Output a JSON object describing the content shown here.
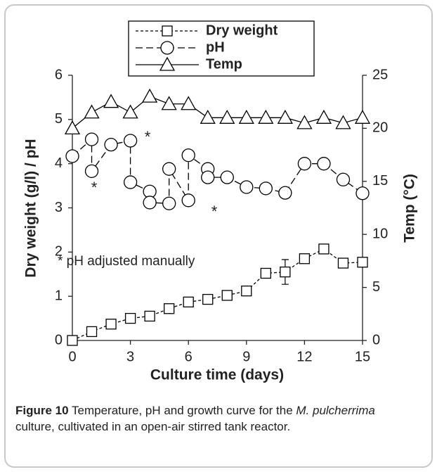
{
  "chart_data": {
    "type": "line",
    "x_label": "Culture time (days)",
    "y_label": "Dry weight (g/l) / pH",
    "y2_label": "Temp (°C)",
    "xlim": [
      0,
      15
    ],
    "xticks": [
      0,
      3,
      6,
      9,
      12,
      15
    ],
    "ylim": [
      0,
      6
    ],
    "yticks": [
      0,
      1,
      2,
      3,
      4,
      5,
      6
    ],
    "y2lim": [
      0,
      25
    ],
    "y2ticks": [
      0,
      5,
      10,
      15,
      20,
      25
    ],
    "grid": false,
    "legend": "top",
    "series": [
      {
        "name": "Dry weight",
        "color": "#000000",
        "marker": "square",
        "line_style": "dotted",
        "x": [
          0,
          1,
          2,
          3,
          4,
          5,
          6,
          7,
          8,
          9,
          10,
          11,
          12,
          13,
          14,
          15
        ],
        "values": [
          0,
          0.2,
          0.37,
          0.5,
          0.55,
          0.72,
          0.87,
          0.93,
          1.02,
          1.12,
          1.52,
          1.55,
          1.85,
          2.07,
          1.75,
          1.77
        ],
        "errors": [
          0.02,
          0.03,
          0.03,
          0.04,
          0.04,
          0.04,
          0.06,
          0.03,
          0.03,
          0.03,
          0.05,
          0.28,
          0.03,
          0.03,
          0.03,
          0.03
        ]
      },
      {
        "name": "pH",
        "color": "#000000",
        "marker": "circle",
        "line_style": "dashed",
        "x": [
          0,
          1,
          1,
          2,
          3,
          3,
          4,
          4,
          5,
          5,
          6,
          6,
          7,
          7,
          8,
          9,
          10,
          11,
          12,
          13,
          14,
          15
        ],
        "values": [
          4.17,
          4.55,
          3.83,
          4.43,
          4.52,
          3.58,
          3.37,
          3.12,
          3.1,
          3.88,
          3.17,
          4.19,
          3.88,
          3.69,
          3.69,
          3.47,
          3.44,
          3.34,
          4.0,
          4.0,
          3.64,
          3.33
        ]
      },
      {
        "name": "Temp",
        "color": "#000000",
        "marker": "triangle",
        "line_style": "solid",
        "axis": "y2",
        "x": [
          0,
          1,
          2,
          3,
          4,
          5,
          6,
          7,
          8,
          9,
          10,
          11,
          12,
          13,
          14,
          15
        ],
        "values": [
          20,
          21.5,
          22.5,
          21.5,
          23,
          22.3,
          22.3,
          21,
          21,
          21,
          21,
          21,
          20.5,
          21,
          20.5,
          21
        ]
      }
    ],
    "annotations": [
      "*",
      "*",
      "*"
    ],
    "annotation_note": "* pH adjusted manually"
  },
  "caption": {
    "label": "Figure 10",
    "text_1": " Temperature, pH and growth curve for the ",
    "italic": "M. pulcherrima",
    "text_2": " culture, cultivated in an open-air stirred tank reactor."
  }
}
